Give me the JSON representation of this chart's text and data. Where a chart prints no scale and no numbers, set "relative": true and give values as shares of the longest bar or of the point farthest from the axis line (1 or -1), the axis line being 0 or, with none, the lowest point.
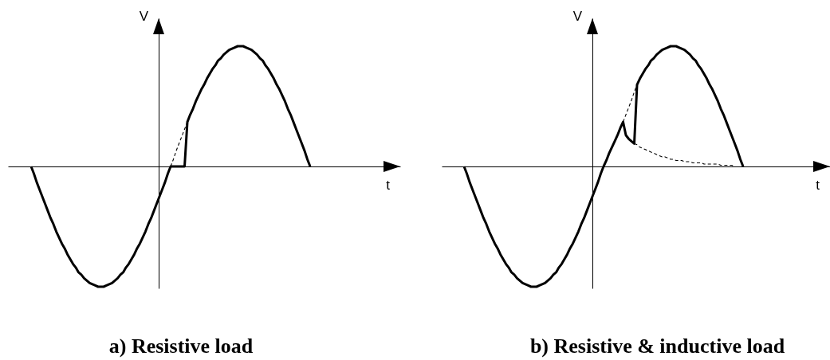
{
  "chart_data": [
    {
      "type": "line",
      "relative": true,
      "title": "a) Resistive load",
      "xlabel": "t",
      "ylabel": "V",
      "categories": [
        null,
        null,
        null,
        null,
        null,
        null,
        null,
        null,
        null,
        null,
        null,
        null,
        null,
        null,
        null,
        null,
        null,
        null,
        null,
        null,
        null,
        null,
        null,
        null,
        null,
        null,
        null,
        null,
        null,
        null,
        null,
        null,
        null,
        null,
        null,
        null,
        null,
        null,
        null,
        null,
        null,
        null,
        null,
        null,
        null,
        null,
        null,
        null,
        null,
        null,
        null,
        null,
        null,
        null,
        null,
        null,
        null,
        null,
        null,
        null,
        null,
        null,
        null,
        null,
        null,
        null,
        null,
        null,
        null,
        null,
        null,
        null,
        null,
        null,
        null,
        null,
        null,
        null,
        null,
        null,
        null,
        null,
        null,
        null,
        null,
        null,
        null,
        null,
        null,
        null,
        null,
        null,
        null,
        null,
        null,
        null,
        null,
        null,
        null,
        null,
        null
      ],
      "series": [
        {
          "color": "#000000",
          "values": [
            0,
            -0.06,
            -0.13,
            -0.19,
            -0.25,
            -0.31,
            -0.37,
            -0.43,
            -0.48,
            -0.54,
            -0.59,
            -0.64,
            -0.68,
            -0.73,
            -0.77,
            -0.81,
            -0.84,
            -0.88,
            -0.9,
            -0.93,
            -0.95,
            -0.97,
            -0.98,
            -0.99,
            -1,
            -1,
            -1,
            -0.99,
            -0.98,
            -0.97,
            -0.95,
            -0.93,
            -0.9,
            -0.88,
            -0.84,
            -0.81,
            -0.77,
            -0.73,
            -0.68,
            -0.64,
            -0.59,
            -0.54,
            -0.48,
            -0.43,
            -0.37,
            -0.31,
            -0.25,
            -0.19,
            -0.13,
            -0.06,
            0,
            0,
            0,
            0,
            0,
            0,
            0.37,
            0.43,
            0.48,
            0.54,
            0.59,
            0.64,
            0.68,
            0.73,
            0.77,
            0.81,
            0.84,
            0.88,
            0.9,
            0.93,
            0.95,
            0.97,
            0.98,
            0.99,
            1,
            1,
            1,
            0.99,
            0.98,
            0.97,
            0.95,
            0.93,
            0.9,
            0.88,
            0.84,
            0.81,
            0.77,
            0.73,
            0.68,
            0.64,
            0.59,
            0.54,
            0.48,
            0.43,
            0.37,
            0.31,
            0.25,
            0.19,
            0.13,
            0.06,
            0
          ]
        },
        {
          "color": "#000000",
          "line_style": "dashed",
          "values": [
            null,
            null,
            null,
            null,
            null,
            null,
            null,
            null,
            null,
            null,
            null,
            null,
            null,
            null,
            null,
            null,
            null,
            null,
            null,
            null,
            null,
            null,
            null,
            null,
            null,
            null,
            null,
            null,
            null,
            null,
            null,
            null,
            null,
            null,
            null,
            null,
            null,
            null,
            null,
            null,
            null,
            null,
            null,
            null,
            null,
            null,
            null,
            null,
            null,
            null,
            0,
            0.06,
            0.13,
            0.19,
            0.25,
            0.31,
            0.37,
            null,
            null,
            null,
            null,
            null,
            null,
            null,
            null,
            null,
            null,
            null,
            null,
            null,
            null,
            null,
            null,
            null,
            null,
            null,
            null,
            null,
            null,
            null,
            null,
            null,
            null,
            null,
            null,
            null,
            null,
            null,
            null,
            null,
            null,
            null,
            null,
            null,
            null,
            null,
            null,
            null,
            null,
            null,
            null
          ]
        }
      ]
    },
    {
      "type": "line",
      "relative": true,
      "title": "b) Resistive & inductive load",
      "xlabel": "t",
      "ylabel": "V",
      "categories": [
        null,
        null,
        null,
        null,
        null,
        null,
        null,
        null,
        null,
        null,
        null,
        null,
        null,
        null,
        null,
        null,
        null,
        null,
        null,
        null,
        null,
        null,
        null,
        null,
        null,
        null,
        null,
        null,
        null,
        null,
        null,
        null,
        null,
        null,
        null,
        null,
        null,
        null,
        null,
        null,
        null,
        null,
        null,
        null,
        null,
        null,
        null,
        null,
        null,
        null,
        null,
        null,
        null,
        null,
        null,
        null,
        null,
        null,
        null,
        null,
        null,
        null,
        null,
        null,
        null,
        null,
        null,
        null,
        null,
        null,
        null,
        null,
        null,
        null,
        null,
        null,
        null,
        null,
        null,
        null,
        null,
        null,
        null,
        null,
        null,
        null,
        null,
        null,
        null,
        null,
        null,
        null,
        null,
        null,
        null,
        null,
        null,
        null,
        null,
        null,
        null
      ],
      "series": [
        {
          "color": "#000000",
          "values": [
            0,
            -0.06,
            -0.13,
            -0.19,
            -0.25,
            -0.31,
            -0.37,
            -0.43,
            -0.48,
            -0.54,
            -0.59,
            -0.64,
            -0.68,
            -0.73,
            -0.77,
            -0.81,
            -0.84,
            -0.88,
            -0.9,
            -0.93,
            -0.95,
            -0.97,
            -0.98,
            -0.99,
            -1,
            -1,
            -1,
            -0.99,
            -0.98,
            -0.97,
            -0.95,
            -0.93,
            -0.9,
            -0.88,
            -0.84,
            -0.81,
            -0.77,
            -0.73,
            -0.68,
            -0.64,
            -0.59,
            -0.54,
            -0.48,
            -0.43,
            -0.37,
            -0.31,
            -0.25,
            -0.19,
            -0.13,
            -0.06,
            0,
            0.05,
            0.11,
            0.16,
            0.21,
            0.26,
            0.32,
            0.37,
            0.26,
            0.23,
            0.21,
            0.19,
            0.68,
            0.73,
            0.77,
            0.81,
            0.84,
            0.88,
            0.9,
            0.93,
            0.95,
            0.97,
            0.98,
            0.99,
            1,
            1,
            1,
            0.99,
            0.98,
            0.97,
            0.95,
            0.93,
            0.9,
            0.88,
            0.84,
            0.81,
            0.77,
            0.73,
            0.68,
            0.64,
            0.59,
            0.54,
            0.48,
            0.43,
            0.37,
            0.31,
            0.25,
            0.19,
            0.13,
            0.06,
            0
          ]
        },
        {
          "color": "#000000",
          "line_style": "dashed",
          "values": [
            null,
            null,
            null,
            null,
            null,
            null,
            null,
            null,
            null,
            null,
            null,
            null,
            null,
            null,
            null,
            null,
            null,
            null,
            null,
            null,
            null,
            null,
            null,
            null,
            null,
            null,
            null,
            null,
            null,
            null,
            null,
            null,
            null,
            null,
            null,
            null,
            null,
            null,
            null,
            null,
            null,
            null,
            null,
            null,
            null,
            null,
            null,
            null,
            null,
            null,
            null,
            null,
            null,
            null,
            null,
            null,
            null,
            0.37,
            0.43,
            0.49,
            0.55,
            0.62,
            0.68,
            null,
            null,
            null,
            null,
            null,
            null,
            null,
            null,
            null,
            null,
            null,
            null,
            null,
            null,
            null,
            null,
            null,
            null,
            null,
            null,
            null,
            null,
            null,
            null,
            null,
            null,
            null,
            null,
            null,
            null,
            null,
            null,
            null,
            null,
            null,
            null,
            null,
            null
          ]
        },
        {
          "color": "#000000",
          "line_style": "dashed",
          "values": [
            null,
            null,
            null,
            null,
            null,
            null,
            null,
            null,
            null,
            null,
            null,
            null,
            null,
            null,
            null,
            null,
            null,
            null,
            null,
            null,
            null,
            null,
            null,
            null,
            null,
            null,
            null,
            null,
            null,
            null,
            null,
            null,
            null,
            null,
            null,
            null,
            null,
            null,
            null,
            null,
            null,
            null,
            null,
            null,
            null,
            null,
            null,
            null,
            null,
            null,
            null,
            null,
            null,
            null,
            null,
            null,
            null,
            null,
            null,
            null,
            null,
            0.19,
            0.18,
            0.16,
            0.15,
            0.14,
            0.13,
            0.12,
            0.11,
            0.1,
            0.09,
            0.08,
            0.08,
            0.07,
            0.06,
            0.06,
            0.05,
            0.05,
            0.05,
            0.04,
            0.04,
            0.04,
            0.03,
            0.03,
            0.03,
            0.03,
            0.02,
            0.02,
            0.02,
            0.02,
            0.02,
            0.02,
            0.01,
            0.01,
            0.01,
            0.01,
            0.01,
            0,
            null,
            null,
            null
          ]
        }
      ]
    }
  ]
}
